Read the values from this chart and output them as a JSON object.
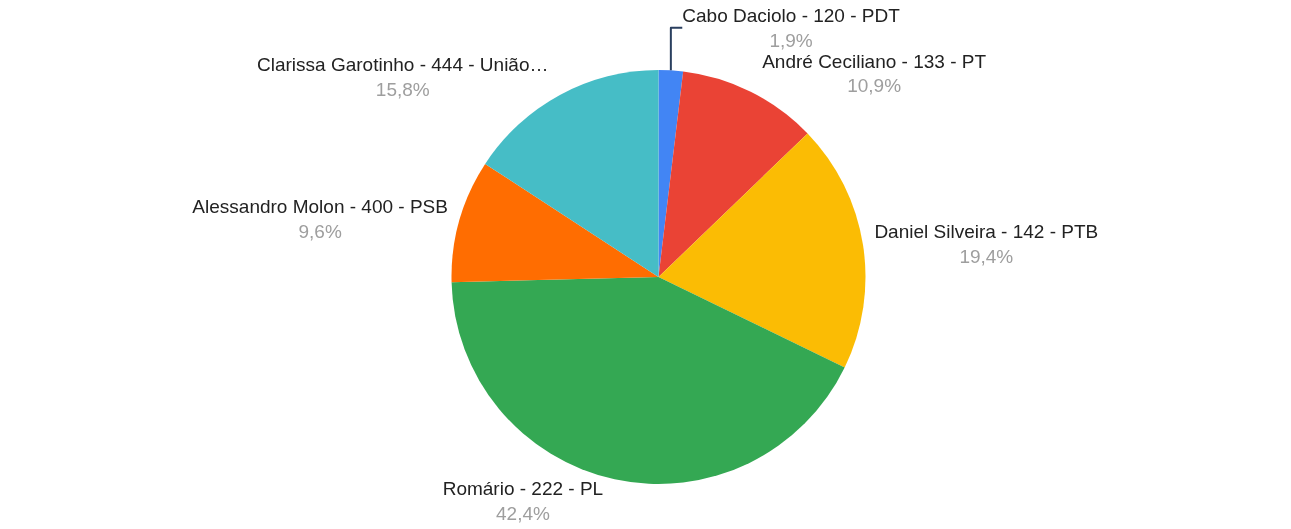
{
  "chart_data": {
    "type": "pie",
    "categories": [
      "Cabo Daciolo - 120 - PDT",
      "André Ceciliano - 133 - PT",
      "Daniel Silveira - 142 - PTB",
      "Romário - 222 - PL",
      "Alessandro Molon - 400 - PSB",
      "Clarissa Garotinho - 444 - União…"
    ],
    "values": [
      1.9,
      10.9,
      19.4,
      42.4,
      9.6,
      15.8
    ],
    "value_labels": [
      "1,9%",
      "10,9%",
      "19,4%",
      "42,4%",
      "9,6%",
      "15,8%"
    ],
    "colors": [
      "#4285f4",
      "#ea4335",
      "#fbbc04",
      "#34a853",
      "#ff6d01",
      "#46bdc6"
    ],
    "legend": false
  }
}
